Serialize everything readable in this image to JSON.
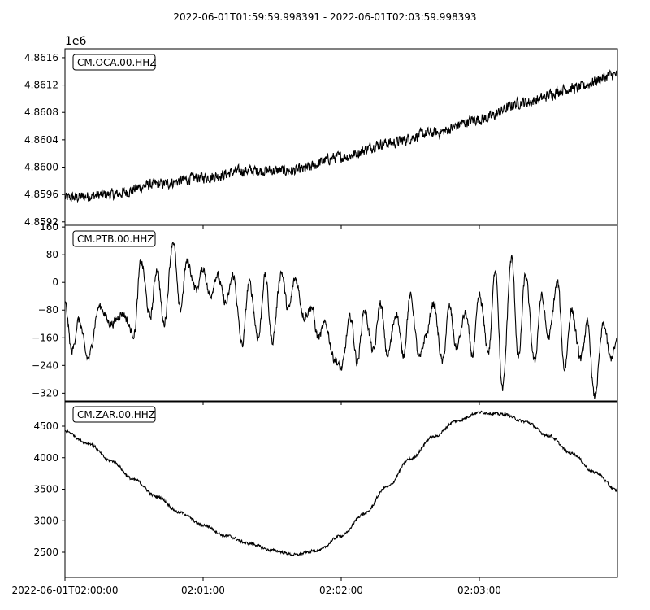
{
  "title": "2022-06-01T01:59:59.998391  -  2022-06-01T02:03:59.998393",
  "colors": {
    "trace": "#000000",
    "axes": "#000000",
    "background": "#ffffff"
  },
  "chart_data": {
    "type": "line",
    "grid": false,
    "x_axis": {
      "range_seconds": [
        0,
        240
      ],
      "ticks": [
        {
          "t": 0,
          "label": "2022-06-01T02:00:00"
        },
        {
          "t": 60,
          "label": "02:01:00"
        },
        {
          "t": 120,
          "label": "02:02:00"
        },
        {
          "t": 180,
          "label": "02:03:00"
        }
      ]
    },
    "panels": [
      {
        "label": "CM.OCA.00.HHZ",
        "offset_text": "1e6",
        "ylim": [
          4.85915,
          4.86173
        ],
        "yticks": [
          {
            "v": 4.8592,
            "label": "4.8592"
          },
          {
            "v": 4.8596,
            "label": "4.8596"
          },
          {
            "v": 4.86,
            "label": "4.8600"
          },
          {
            "v": 4.8604,
            "label": "4.8604"
          },
          {
            "v": 4.8608,
            "label": "4.8608"
          },
          {
            "v": 4.8612,
            "label": "4.8612"
          },
          {
            "v": 4.8616,
            "label": "4.8616"
          }
        ],
        "series": {
          "t": [
            0,
            20,
            40,
            60,
            80,
            100,
            120,
            140,
            160,
            180,
            200,
            220,
            240
          ],
          "v": [
            4.85955,
            4.8596,
            4.85975,
            4.85985,
            4.85995,
            4.85995,
            4.86015,
            4.86035,
            4.8605,
            4.8607,
            4.86095,
            4.86115,
            4.86135
          ],
          "noise": 0.00011
        }
      },
      {
        "label": "CM.PTB.00.HHZ",
        "offset_text": "",
        "ylim": [
          -345,
          165
        ],
        "yticks": [
          {
            "v": 160,
            "label": "160"
          },
          {
            "v": 80,
            "label": "80"
          },
          {
            "v": 0,
            "label": "0"
          },
          {
            "v": -80,
            "label": "−80"
          },
          {
            "v": -160,
            "label": "−160"
          },
          {
            "v": -240,
            "label": "−240"
          },
          {
            "v": -320,
            "label": "−320"
          }
        ],
        "series": {
          "t": [
            0,
            3,
            6,
            10,
            15,
            20,
            25,
            30,
            33,
            37,
            40,
            43,
            47,
            50,
            53,
            57,
            60,
            63,
            66,
            70,
            73,
            77,
            80,
            84,
            87,
            90,
            94,
            97,
            100,
            104,
            107,
            110,
            113,
            117,
            120,
            124,
            127,
            130,
            134,
            137,
            140,
            144,
            147,
            150,
            154,
            157,
            160,
            164,
            167,
            170,
            174,
            177,
            180,
            184,
            187,
            190,
            194,
            197,
            200,
            204,
            207,
            210,
            214,
            217,
            220,
            224,
            227,
            230,
            234,
            237,
            240
          ],
          "v": [
            -60,
            -200,
            -110,
            -220,
            -70,
            -120,
            -90,
            -150,
            60,
            -100,
            40,
            -120,
            120,
            -80,
            60,
            -20,
            40,
            -40,
            20,
            -60,
            20,
            -180,
            0,
            -160,
            20,
            -170,
            30,
            -80,
            10,
            -100,
            -70,
            -160,
            -120,
            -220,
            -250,
            -100,
            -230,
            -80,
            -200,
            -60,
            -210,
            -90,
            -210,
            -40,
            -220,
            -150,
            -60,
            -230,
            -70,
            -190,
            -90,
            -210,
            -40,
            -200,
            40,
            -310,
            70,
            -220,
            20,
            -230,
            -40,
            -160,
            0,
            -250,
            -80,
            -220,
            -120,
            -330,
            -120,
            -220,
            -170
          ],
          "noise": 18
        }
      },
      {
        "label": "CM.ZAR.00.HHZ",
        "offset_text": "",
        "ylim": [
          2100,
          4900
        ],
        "yticks": [
          {
            "v": 4500,
            "label": "4500"
          },
          {
            "v": 4000,
            "label": "4000"
          },
          {
            "v": 3500,
            "label": "3500"
          },
          {
            "v": 3000,
            "label": "3000"
          },
          {
            "v": 2500,
            "label": "2500"
          }
        ],
        "series": {
          "t": [
            0,
            10,
            20,
            30,
            40,
            50,
            60,
            70,
            80,
            90,
            100,
            110,
            120,
            130,
            140,
            150,
            160,
            170,
            180,
            190,
            200,
            210,
            220,
            230,
            240
          ],
          "v": [
            4420,
            4230,
            3950,
            3650,
            3380,
            3130,
            2930,
            2760,
            2640,
            2530,
            2460,
            2530,
            2760,
            3110,
            3540,
            3980,
            4330,
            4580,
            4720,
            4690,
            4570,
            4350,
            4070,
            3770,
            3480
          ],
          "noise": 30
        }
      }
    ]
  }
}
